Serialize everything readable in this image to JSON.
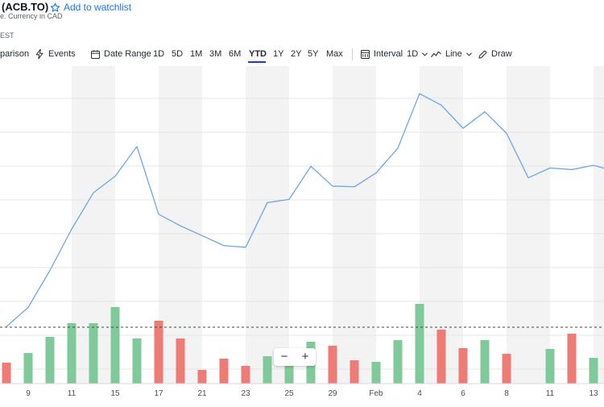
{
  "header": {
    "title": "(ACB.TO)",
    "watchlist_label": "Add to watchlist",
    "subline": "e. Currency in CAD",
    "time_label": "EST"
  },
  "toolbar": {
    "comparison_label": "parison",
    "events_label": "Events",
    "date_range_label": "Date Range",
    "ranges": [
      "1D",
      "5D",
      "1M",
      "3M",
      "6M",
      "YTD",
      "1Y",
      "2Y",
      "5Y",
      "Max"
    ],
    "active_range": "YTD",
    "interval_label": "Interval",
    "interval_value": "1D",
    "chart_type_label": "Line",
    "draw_label": "Draw"
  },
  "zoom": {
    "minus": "−",
    "plus": "+"
  },
  "colors": {
    "line": "#6ea6e8",
    "up_volume": "#7fc99a",
    "down_volume": "#ee7b76",
    "band": "#f3f3f3",
    "grid": "#e6e6e6",
    "accent": "#1a3fb6"
  },
  "chart_data": {
    "type": "line",
    "x_tick_labels": [
      "9",
      "11",
      "15",
      "17",
      "21",
      "23",
      "25",
      "29",
      "Feb",
      "4",
      "6",
      "8",
      "11",
      "13"
    ],
    "price_series": [
      {
        "t": 0,
        "v": 8.0
      },
      {
        "t": 1,
        "v": 13.8
      },
      {
        "t": 2,
        "v": 25.0
      },
      {
        "t": 3,
        "v": 37.5
      },
      {
        "t": 4,
        "v": 48.5
      },
      {
        "t": 5,
        "v": 53.5
      },
      {
        "t": 6,
        "v": 62.5
      },
      {
        "t": 7,
        "v": 42.0
      },
      {
        "t": 8,
        "v": 38.5
      },
      {
        "t": 9,
        "v": 35.5
      },
      {
        "t": 10,
        "v": 32.5
      },
      {
        "t": 11,
        "v": 32.0
      },
      {
        "t": 12,
        "v": 45.5
      },
      {
        "t": 13,
        "v": 46.5
      },
      {
        "t": 14,
        "v": 56.5
      },
      {
        "t": 15,
        "v": 50.5
      },
      {
        "t": 16,
        "v": 50.3
      },
      {
        "t": 17,
        "v": 54.5
      },
      {
        "t": 18,
        "v": 62.0
      },
      {
        "t": 19,
        "v": 78.5
      },
      {
        "t": 20,
        "v": 75.0
      },
      {
        "t": 21,
        "v": 68.0
      },
      {
        "t": 22,
        "v": 73.0
      },
      {
        "t": 23,
        "v": 66.5
      },
      {
        "t": 24,
        "v": 53.0
      },
      {
        "t": 25,
        "v": 56.0
      },
      {
        "t": 26,
        "v": 55.5
      },
      {
        "t": 27,
        "v": 56.8
      },
      {
        "t": 28,
        "v": 55.0
      }
    ],
    "volume_series": [
      {
        "t": 0,
        "v": 26,
        "dir": "down"
      },
      {
        "t": 1,
        "v": 38,
        "dir": "up"
      },
      {
        "t": 2,
        "v": 58,
        "dir": "up"
      },
      {
        "t": 3,
        "v": 75,
        "dir": "up"
      },
      {
        "t": 4,
        "v": 75,
        "dir": "up"
      },
      {
        "t": 5,
        "v": 95,
        "dir": "up"
      },
      {
        "t": 6,
        "v": 56,
        "dir": "up"
      },
      {
        "t": 7,
        "v": 78,
        "dir": "down"
      },
      {
        "t": 8,
        "v": 56,
        "dir": "down"
      },
      {
        "t": 9,
        "v": 17,
        "dir": "down"
      },
      {
        "t": 10,
        "v": 31,
        "dir": "down"
      },
      {
        "t": 11,
        "v": 22,
        "dir": "down"
      },
      {
        "t": 12,
        "v": 34,
        "dir": "up"
      },
      {
        "t": 13,
        "v": 41,
        "dir": "up"
      },
      {
        "t": 14,
        "v": 52,
        "dir": "up"
      },
      {
        "t": 15,
        "v": 47,
        "dir": "down"
      },
      {
        "t": 16,
        "v": 29,
        "dir": "down"
      },
      {
        "t": 17,
        "v": 27,
        "dir": "up"
      },
      {
        "t": 18,
        "v": 54,
        "dir": "up"
      },
      {
        "t": 19,
        "v": 99,
        "dir": "up"
      },
      {
        "t": 20,
        "v": 67,
        "dir": "down"
      },
      {
        "t": 21,
        "v": 44,
        "dir": "down"
      },
      {
        "t": 22,
        "v": 54,
        "dir": "up"
      },
      {
        "t": 23,
        "v": 37,
        "dir": "down"
      },
      {
        "t": 25,
        "v": 43,
        "dir": "up"
      },
      {
        "t": 26,
        "v": 62,
        "dir": "down"
      },
      {
        "t": 27,
        "v": 32,
        "dir": "up"
      }
    ],
    "price_range": [
      0,
      100
    ],
    "volume_range": [
      0,
      100
    ],
    "reference_line_volume": 70,
    "grid": true,
    "day_bands": true
  }
}
